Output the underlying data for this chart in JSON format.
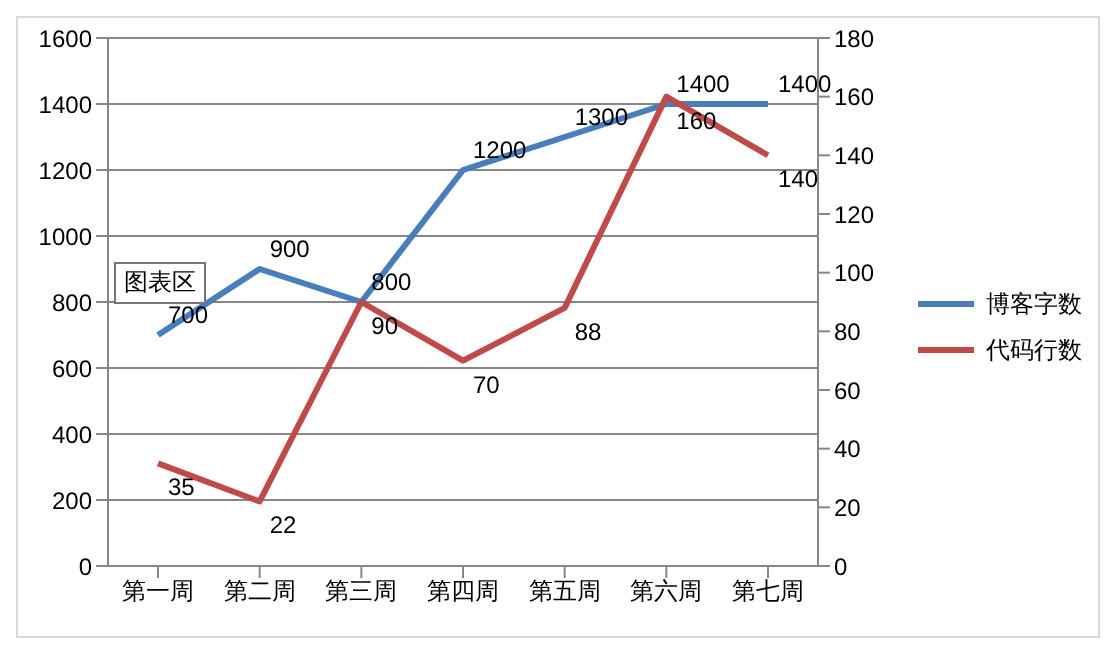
{
  "chart_data": {
    "type": "line",
    "categories": [
      "第一周",
      "第二周",
      "第三周",
      "第四周",
      "第五周",
      "第六周",
      "第七周"
    ],
    "series": [
      {
        "name": "博客字数",
        "color": "#4a7ebb",
        "values": [
          700,
          900,
          800,
          1200,
          1300,
          1400,
          1400
        ]
      },
      {
        "name": "代码行数",
        "color": "#be4b48",
        "values": [
          35,
          22,
          90,
          70,
          88,
          160,
          140
        ],
        "axis": "y2"
      }
    ],
    "ylim": [
      0,
      1600
    ],
    "yticks": [
      0,
      200,
      400,
      600,
      800,
      1000,
      1200,
      1400,
      1600
    ],
    "y2lim": [
      0,
      180
    ],
    "y2ticks": [
      0,
      20,
      40,
      60,
      80,
      100,
      120,
      140,
      160,
      180
    ],
    "grid": "y",
    "legend": "right",
    "marker": "none",
    "line_style": "solid",
    "data_labels": true,
    "annotations": [
      "图表区"
    ]
  }
}
